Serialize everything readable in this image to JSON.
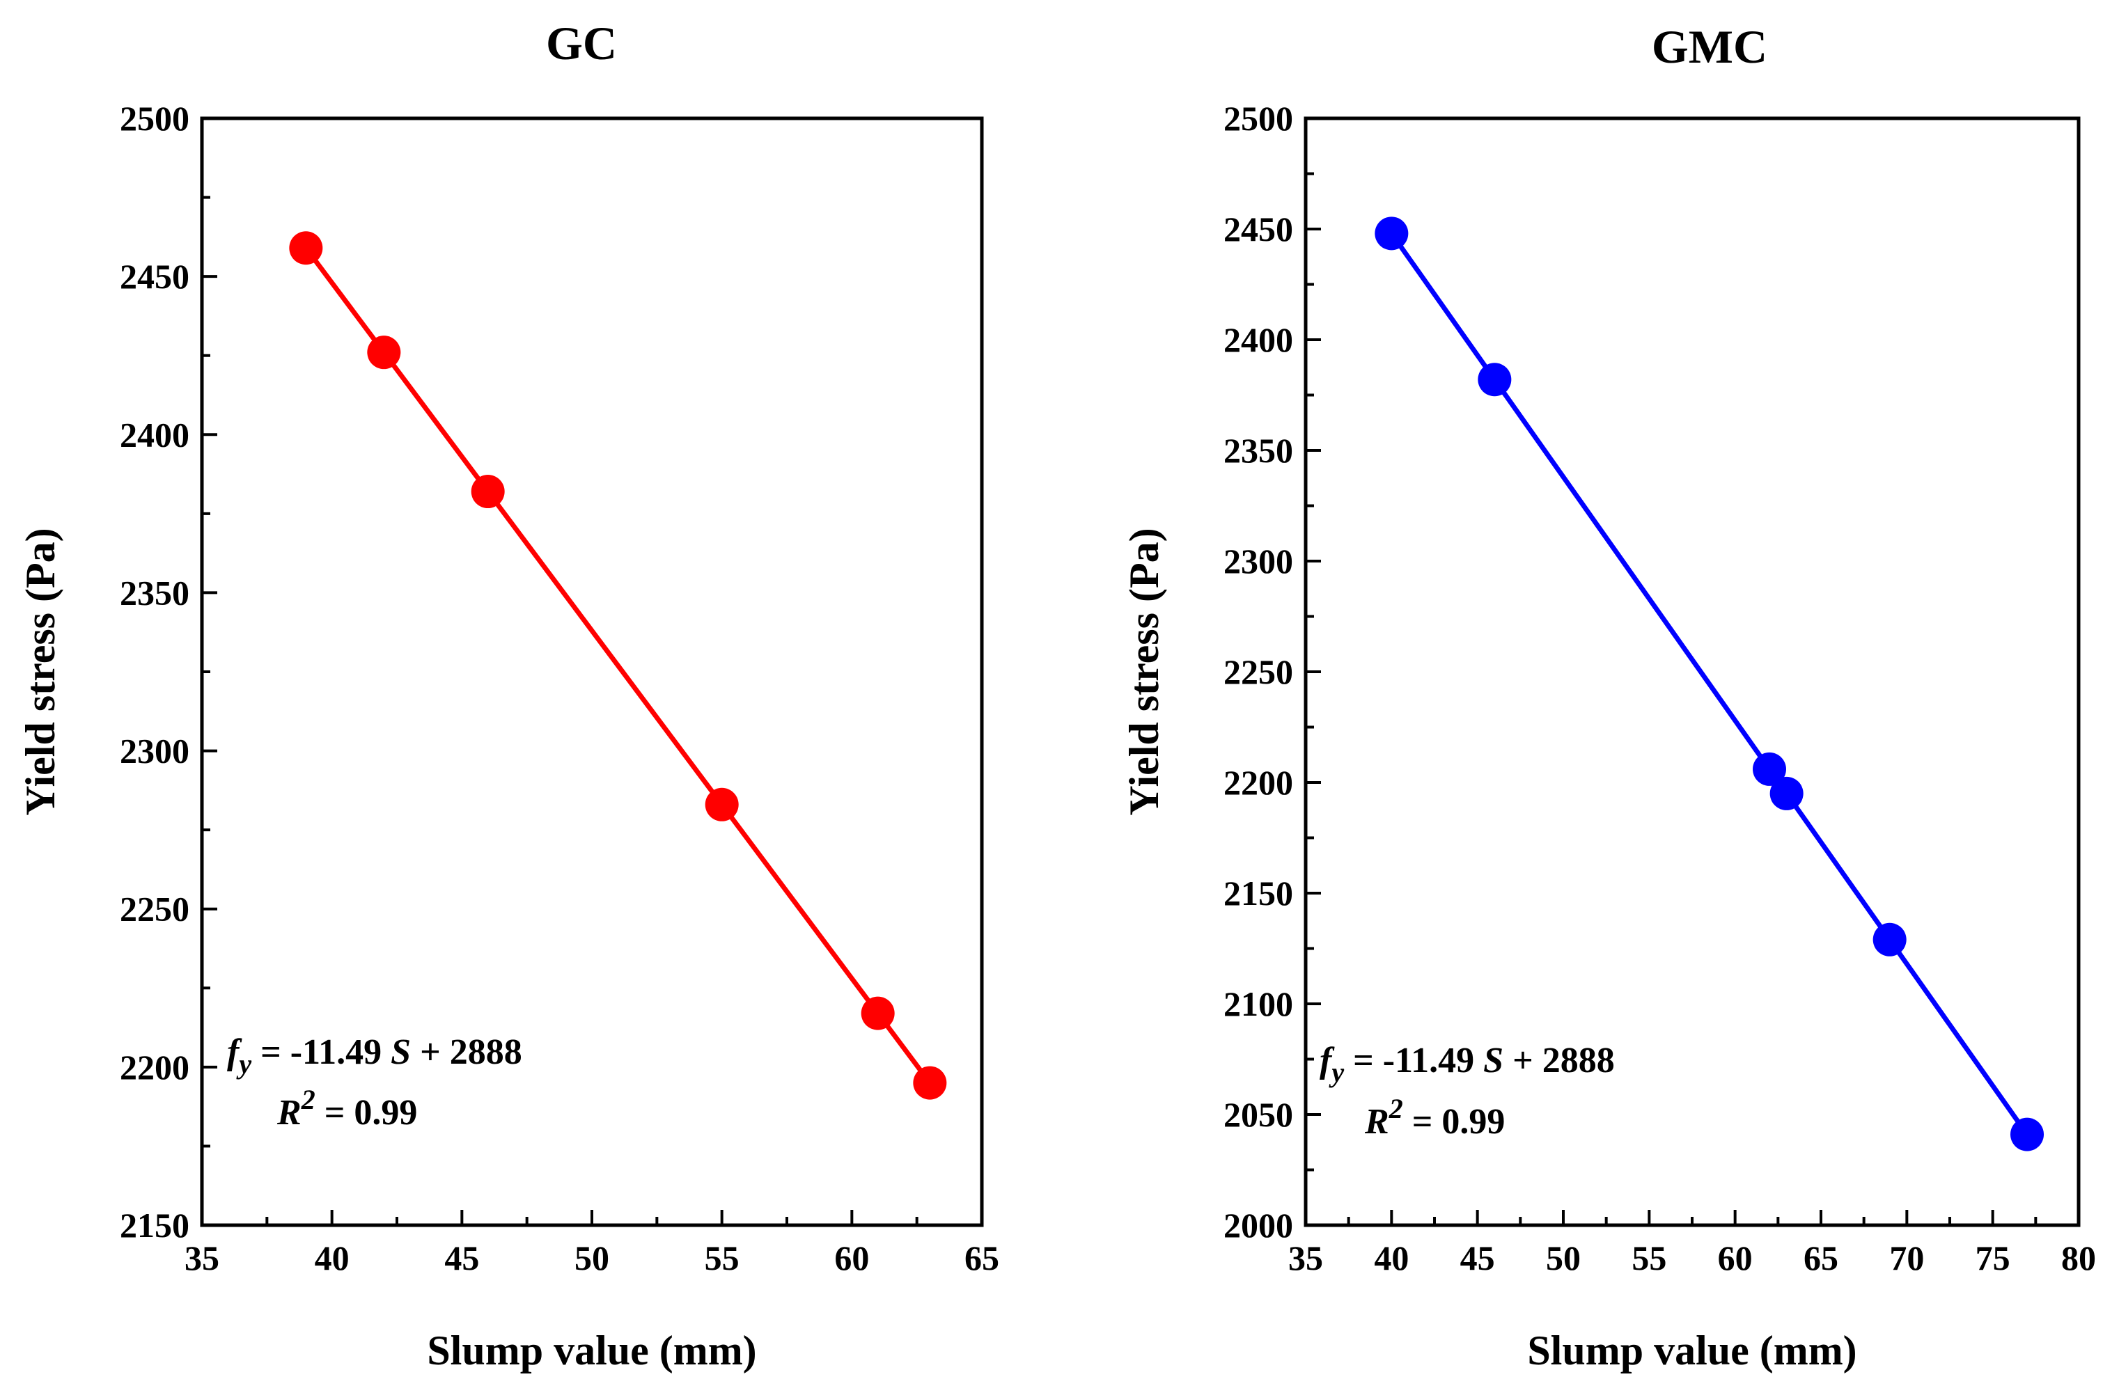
{
  "chart_data": [
    {
      "type": "line",
      "title": "GC",
      "xlabel": "Slump value (mm)",
      "ylabel": "Yield stress (Pa)",
      "xlim": [
        35,
        65
      ],
      "ylim": [
        2150,
        2500
      ],
      "xticks": [
        35,
        40,
        45,
        50,
        55,
        60,
        65
      ],
      "yticks": [
        2150,
        2200,
        2250,
        2300,
        2350,
        2400,
        2450,
        2500
      ],
      "x_minor_step": 2.5,
      "y_minor_step": 25,
      "grid": false,
      "color": "#ff0000",
      "series": [
        {
          "name": "GC",
          "x": [
            39,
            42,
            46,
            55,
            61,
            63
          ],
          "y": [
            2459,
            2426,
            2382,
            2283,
            2217,
            2195
          ]
        }
      ],
      "fit_line": {
        "slope": -11.49,
        "intercept": 2888,
        "x_range": [
          39,
          63
        ]
      },
      "equation": {
        "f": "f",
        "f_sub": "y",
        "rhs_prefix": " = -11.49 ",
        "var": "S",
        "rhs_suffix": " + 2888",
        "r": "R",
        "r_sup": "2",
        "r_value": " = 0.99"
      }
    },
    {
      "type": "line",
      "title": "GMC",
      "xlabel": "Slump value (mm)",
      "ylabel": "Yield stress (Pa)",
      "xlim": [
        35,
        80
      ],
      "ylim": [
        2000,
        2500
      ],
      "xticks": [
        35,
        40,
        45,
        50,
        55,
        60,
        65,
        70,
        75,
        80
      ],
      "yticks": [
        2000,
        2050,
        2100,
        2150,
        2200,
        2250,
        2300,
        2350,
        2400,
        2450,
        2500
      ],
      "x_minor_step": 2.5,
      "y_minor_step": 25,
      "grid": false,
      "color": "#0000ff",
      "series": [
        {
          "name": "GMC",
          "x": [
            40,
            46,
            62,
            63,
            69,
            77
          ],
          "y": [
            2448,
            2382,
            2206,
            2195,
            2129,
            2041
          ]
        }
      ],
      "fit_line": {
        "slope": -11.49,
        "intercept": 2888,
        "x_range": [
          40,
          77
        ]
      },
      "equation": {
        "f": "f",
        "f_sub": "y",
        "rhs_prefix": " = -11.49 ",
        "var": "S",
        "rhs_suffix": " + 2888",
        "r": "R",
        "r_sup": "2",
        "r_value": " = 0.99"
      }
    }
  ]
}
